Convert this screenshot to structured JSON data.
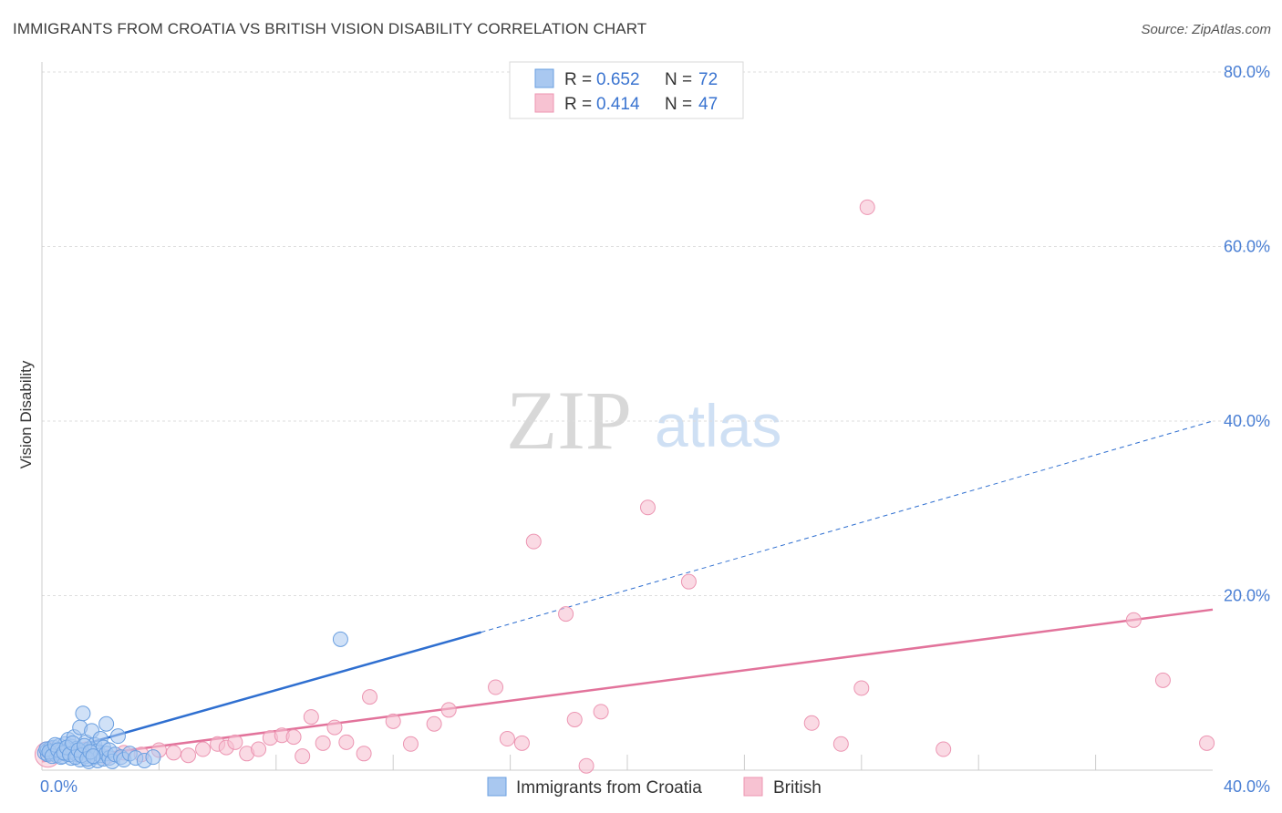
{
  "header": {
    "title": "IMMIGRANTS FROM CROATIA VS BRITISH VISION DISABILITY CORRELATION CHART",
    "source": "Source: ZipAtlas.com"
  },
  "watermark": {
    "zip": "ZIP",
    "atlas": "atlas"
  },
  "legend": {
    "series": [
      {
        "r_label": "R =",
        "r_value": "0.652",
        "n_label": "N =",
        "n_value": "72"
      },
      {
        "r_label": "R =",
        "r_value": "0.414",
        "n_label": "N =",
        "n_value": "47"
      }
    ]
  },
  "bottom_legend": {
    "items": [
      {
        "label": "Immigrants from Croatia"
      },
      {
        "label": "British"
      }
    ]
  },
  "colors": {
    "blue_fill": "#a9c8f0",
    "blue_stroke": "#6a9fe0",
    "blue_line": "#2f6fd0",
    "pink_fill": "#f7c2d2",
    "pink_stroke": "#ec95b2",
    "pink_line": "#e2739b",
    "grid": "#dddddd",
    "tick": "#4a7fd4"
  },
  "chart_data": {
    "type": "scatter",
    "title": "IMMIGRANTS FROM CROATIA VS BRITISH VISION DISABILITY CORRELATION CHART",
    "xlabel": "",
    "ylabel": "Vision Disability",
    "xlim": [
      0,
      40
    ],
    "ylim": [
      0,
      80
    ],
    "x_tick_labels": [
      "0.0%",
      "40.0%"
    ],
    "y_ticks": [
      20,
      40,
      60,
      80
    ],
    "y_tick_labels": [
      "20.0%",
      "40.0%",
      "60.0%",
      "80.0%"
    ],
    "grid": true,
    "series": [
      {
        "name": "Immigrants from Croatia",
        "R": 0.652,
        "N": 72,
        "trend": {
          "x0": 0,
          "y0": 1.6,
          "x1": 15,
          "y1": 15.8,
          "dashed_to_x": 40,
          "dashed_to_y": 40.0
        },
        "points": [
          [
            0.1,
            2.0
          ],
          [
            0.2,
            2.3
          ],
          [
            0.2,
            1.8
          ],
          [
            0.3,
            2.5
          ],
          [
            0.3,
            1.9
          ],
          [
            0.4,
            2.1
          ],
          [
            0.4,
            2.6
          ],
          [
            0.5,
            1.7
          ],
          [
            0.5,
            2.2
          ],
          [
            0.6,
            2.0
          ],
          [
            0.6,
            2.8
          ],
          [
            0.7,
            1.6
          ],
          [
            0.7,
            2.4
          ],
          [
            0.8,
            3.0
          ],
          [
            0.8,
            1.9
          ],
          [
            0.9,
            2.2
          ],
          [
            0.9,
            3.5
          ],
          [
            1.0,
            1.4
          ],
          [
            1.0,
            2.7
          ],
          [
            1.1,
            2.0
          ],
          [
            1.1,
            3.8
          ],
          [
            1.2,
            1.8
          ],
          [
            1.2,
            2.5
          ],
          [
            1.3,
            1.2
          ],
          [
            1.3,
            4.9
          ],
          [
            1.4,
            2.1
          ],
          [
            1.4,
            6.5
          ],
          [
            1.5,
            1.6
          ],
          [
            1.5,
            3.2
          ],
          [
            1.6,
            2.4
          ],
          [
            1.6,
            1.0
          ],
          [
            1.7,
            2.0
          ],
          [
            1.7,
            4.5
          ],
          [
            1.8,
            1.5
          ],
          [
            1.8,
            2.9
          ],
          [
            1.9,
            1.1
          ],
          [
            1.9,
            2.2
          ],
          [
            2.0,
            1.7
          ],
          [
            2.0,
            3.6
          ],
          [
            2.1,
            1.3
          ],
          [
            2.1,
            2.6
          ],
          [
            2.2,
            1.9
          ],
          [
            2.2,
            5.3
          ],
          [
            2.3,
            1.4
          ],
          [
            2.3,
            2.3
          ],
          [
            2.4,
            1.0
          ],
          [
            2.5,
            1.8
          ],
          [
            2.6,
            3.9
          ],
          [
            2.7,
            1.5
          ],
          [
            2.8,
            1.2
          ],
          [
            3.0,
            1.9
          ],
          [
            3.2,
            1.4
          ],
          [
            3.5,
            1.1
          ],
          [
            3.8,
            1.5
          ],
          [
            0.15,
            2.4
          ],
          [
            0.25,
            2.1
          ],
          [
            0.35,
            1.6
          ],
          [
            0.45,
            2.9
          ],
          [
            0.55,
            2.3
          ],
          [
            0.65,
            1.5
          ],
          [
            0.75,
            2.0
          ],
          [
            0.85,
            2.6
          ],
          [
            0.95,
            1.8
          ],
          [
            1.05,
            3.1
          ],
          [
            1.15,
            1.5
          ],
          [
            1.25,
            2.3
          ],
          [
            1.35,
            1.7
          ],
          [
            1.45,
            2.8
          ],
          [
            1.55,
            1.3
          ],
          [
            1.65,
            2.1
          ],
          [
            1.75,
            1.6
          ],
          [
            10.2,
            15.0
          ]
        ]
      },
      {
        "name": "British",
        "R": 0.414,
        "N": 47,
        "trend": {
          "x0": 0,
          "y0": 1.0,
          "x1": 40,
          "y1": 18.4
        },
        "points": [
          [
            0.3,
            2.2
          ],
          [
            0.8,
            1.9
          ],
          [
            1.5,
            2.4
          ],
          [
            2.2,
            1.5
          ],
          [
            2.8,
            2.0
          ],
          [
            3.4,
            1.8
          ],
          [
            4.0,
            2.3
          ],
          [
            4.5,
            2.0
          ],
          [
            5.0,
            1.7
          ],
          [
            5.5,
            2.4
          ],
          [
            6.0,
            3.0
          ],
          [
            6.3,
            2.6
          ],
          [
            6.6,
            3.2
          ],
          [
            7.0,
            1.9
          ],
          [
            7.4,
            2.4
          ],
          [
            7.8,
            3.7
          ],
          [
            8.2,
            4.0
          ],
          [
            8.6,
            3.8
          ],
          [
            8.9,
            1.6
          ],
          [
            9.2,
            6.1
          ],
          [
            9.6,
            3.1
          ],
          [
            10.0,
            4.9
          ],
          [
            10.4,
            3.2
          ],
          [
            11.0,
            1.9
          ],
          [
            11.2,
            8.4
          ],
          [
            12.0,
            5.6
          ],
          [
            12.6,
            3.0
          ],
          [
            13.4,
            5.3
          ],
          [
            13.9,
            6.9
          ],
          [
            15.5,
            9.5
          ],
          [
            15.9,
            3.6
          ],
          [
            16.4,
            3.1
          ],
          [
            16.8,
            26.2
          ],
          [
            17.9,
            17.9
          ],
          [
            18.2,
            5.8
          ],
          [
            18.6,
            0.5
          ],
          [
            19.1,
            6.7
          ],
          [
            20.7,
            30.1
          ],
          [
            22.1,
            21.6
          ],
          [
            26.3,
            5.4
          ],
          [
            27.3,
            3.0
          ],
          [
            28.0,
            9.4
          ],
          [
            28.2,
            64.5
          ],
          [
            30.8,
            2.4
          ],
          [
            37.3,
            17.2
          ],
          [
            38.3,
            10.3
          ],
          [
            39.8,
            3.1
          ]
        ]
      }
    ]
  }
}
